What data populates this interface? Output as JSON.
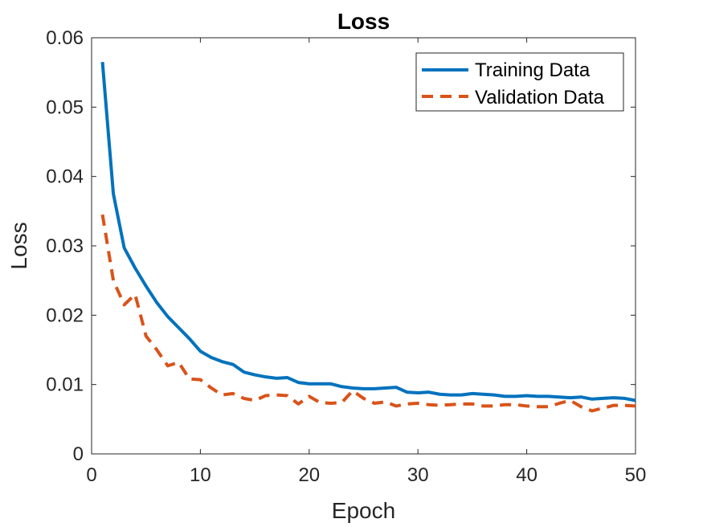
{
  "chart_data": {
    "type": "line",
    "title": "Loss",
    "xlabel": "Epoch",
    "ylabel": "Loss",
    "xlim": [
      0,
      50
    ],
    "ylim": [
      0,
      0.06
    ],
    "xticks": [
      0,
      10,
      20,
      30,
      40,
      50
    ],
    "xtick_labels": [
      "0",
      "10",
      "20",
      "30",
      "40",
      "50"
    ],
    "yticks": [
      0,
      0.01,
      0.02,
      0.03,
      0.04,
      0.05,
      0.06
    ],
    "ytick_labels": [
      "0",
      "0.01",
      "0.02",
      "0.03",
      "0.04",
      "0.05",
      "0.06"
    ],
    "grid": false,
    "legend_position": "top-right",
    "x": [
      1,
      2,
      3,
      4,
      5,
      6,
      7,
      8,
      9,
      10,
      11,
      12,
      13,
      14,
      15,
      16,
      17,
      18,
      19,
      20,
      21,
      22,
      23,
      24,
      25,
      26,
      27,
      28,
      29,
      30,
      31,
      32,
      33,
      34,
      35,
      36,
      37,
      38,
      39,
      40,
      41,
      42,
      43,
      44,
      45,
      46,
      47,
      48,
      49,
      50
    ],
    "series": [
      {
        "name": "Training Data",
        "color": "#0072BD",
        "style": "solid",
        "values": [
          0.0565,
          0.0375,
          0.0297,
          0.0268,
          0.0242,
          0.0218,
          0.0198,
          0.0182,
          0.0166,
          0.0148,
          0.0139,
          0.0133,
          0.0129,
          0.0118,
          0.0114,
          0.0111,
          0.0109,
          0.011,
          0.0103,
          0.0101,
          0.0101,
          0.0101,
          0.0097,
          0.0095,
          0.0094,
          0.0094,
          0.0095,
          0.0096,
          0.0089,
          0.0088,
          0.0089,
          0.0086,
          0.0085,
          0.0085,
          0.0087,
          0.0086,
          0.0085,
          0.0083,
          0.0083,
          0.0084,
          0.0083,
          0.0083,
          0.0082,
          0.0081,
          0.0082,
          0.0079,
          0.008,
          0.0081,
          0.008,
          0.0077
        ]
      },
      {
        "name": "Validation Data",
        "color": "#D95319",
        "style": "dashed",
        "values": [
          0.0345,
          0.025,
          0.0215,
          0.023,
          0.017,
          0.015,
          0.0127,
          0.0132,
          0.0108,
          0.0107,
          0.0095,
          0.0085,
          0.0087,
          0.008,
          0.0077,
          0.0084,
          0.0085,
          0.0084,
          0.0072,
          0.0083,
          0.0074,
          0.0073,
          0.0074,
          0.0091,
          0.008,
          0.0073,
          0.0075,
          0.0069,
          0.0072,
          0.0073,
          0.0071,
          0.007,
          0.0071,
          0.0072,
          0.0072,
          0.0069,
          0.0069,
          0.0071,
          0.0071,
          0.0069,
          0.0068,
          0.0068,
          0.0073,
          0.0077,
          0.0068,
          0.0062,
          0.0066,
          0.007,
          0.007,
          0.0069
        ]
      }
    ]
  }
}
